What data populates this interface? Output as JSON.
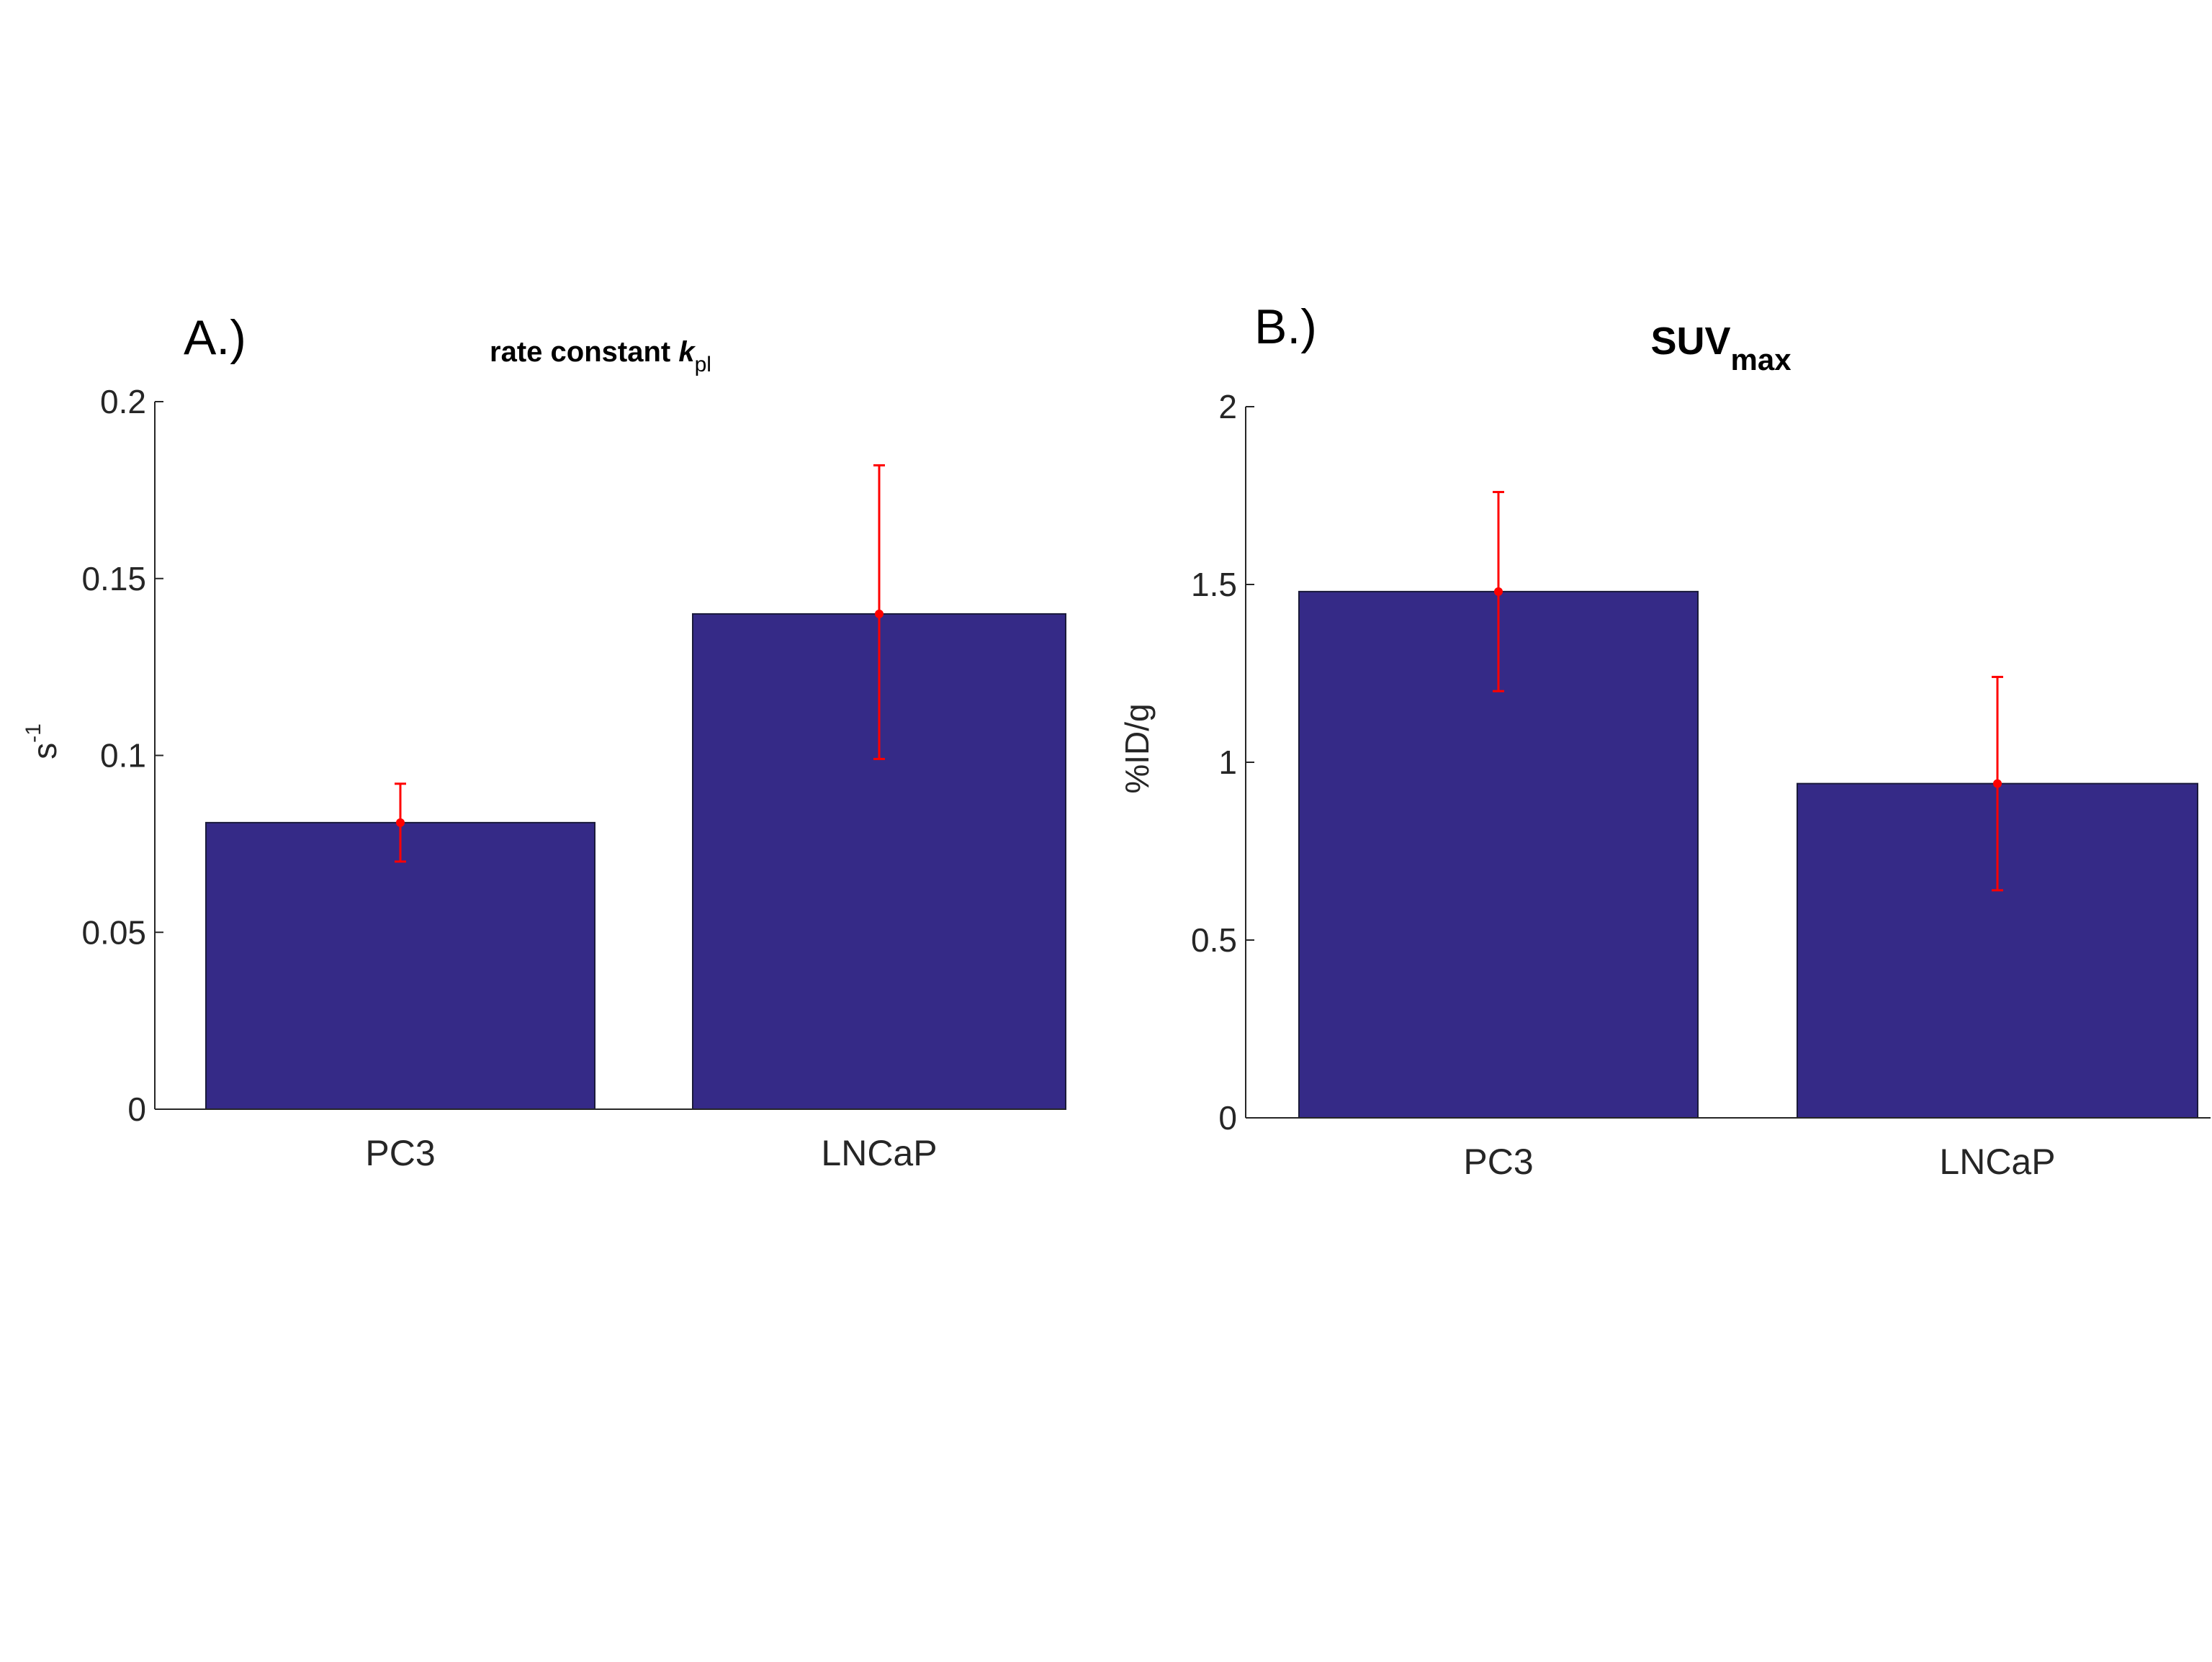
{
  "chart_data": [
    {
      "type": "bar",
      "panel_label": "A.)",
      "title": "rate constant",
      "title_symbol": "k",
      "title_subscript": "pl",
      "ylabel": "s",
      "ylabel_superscript": "-1",
      "xlabel": "",
      "categories": [
        "PC3",
        "LNCaP"
      ],
      "values": [
        0.081,
        0.14
      ],
      "error_low": [
        0.07,
        0.099
      ],
      "error_high": [
        0.092,
        0.182
      ],
      "ylim": [
        0,
        0.2
      ],
      "yticks": [
        0,
        0.05,
        0.1,
        0.15,
        0.2
      ],
      "ytick_labels": [
        "0",
        "0.05",
        "0.1",
        "0.15",
        "0.2"
      ],
      "grid": false,
      "bar_color": "#352a87",
      "error_color": "#ff0000"
    },
    {
      "type": "bar",
      "panel_label": "B.)",
      "title": "SUV",
      "title_subscript": "max",
      "ylabel": "%ID/g",
      "xlabel": "",
      "categories": [
        "PC3",
        "LNCaP"
      ],
      "values": [
        1.48,
        0.94
      ],
      "error_low": [
        1.2,
        0.64
      ],
      "error_high": [
        1.76,
        1.24
      ],
      "ylim": [
        0,
        2
      ],
      "yticks": [
        0,
        0.5,
        1,
        1.5,
        2
      ],
      "ytick_labels": [
        "0",
        "0.5",
        "1",
        "1.5",
        "2"
      ],
      "grid": false,
      "bar_color": "#352a87",
      "error_color": "#ff0000"
    }
  ]
}
